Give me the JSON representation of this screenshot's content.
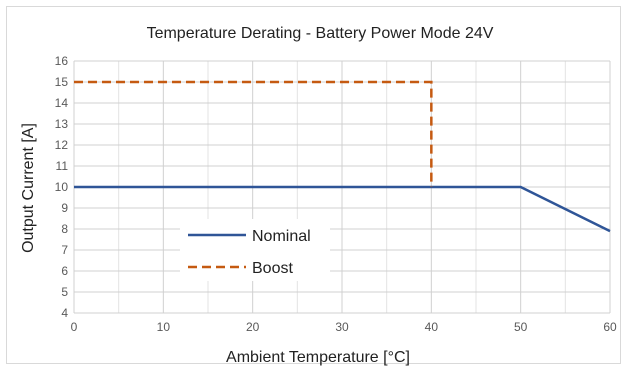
{
  "chart_data": {
    "type": "line",
    "title": "Temperature Derating - Battery Power Mode 24V",
    "xlabel": "Ambient Temperature [°C]",
    "ylabel": "Output Current [A]",
    "xlim": [
      0,
      60
    ],
    "ylim": [
      4,
      16
    ],
    "xticks": [
      "0",
      "10",
      "20",
      "30",
      "40",
      "50",
      "60"
    ],
    "yticks": [
      "4",
      "5",
      "6",
      "7",
      "8",
      "9",
      "10",
      "11",
      "12",
      "13",
      "14",
      "15",
      "16"
    ],
    "grid": true,
    "legend_position": "lower-left",
    "series": [
      {
        "name": "Nominal",
        "color": "#2f5597",
        "dash": "solid",
        "points": [
          [
            0,
            10
          ],
          [
            50,
            10
          ],
          [
            60,
            7.9
          ]
        ]
      },
      {
        "name": "Boost",
        "color": "#c55a11",
        "dash": "dashed",
        "points": [
          [
            0,
            15
          ],
          [
            40,
            15
          ],
          [
            40,
            10
          ]
        ]
      }
    ]
  }
}
